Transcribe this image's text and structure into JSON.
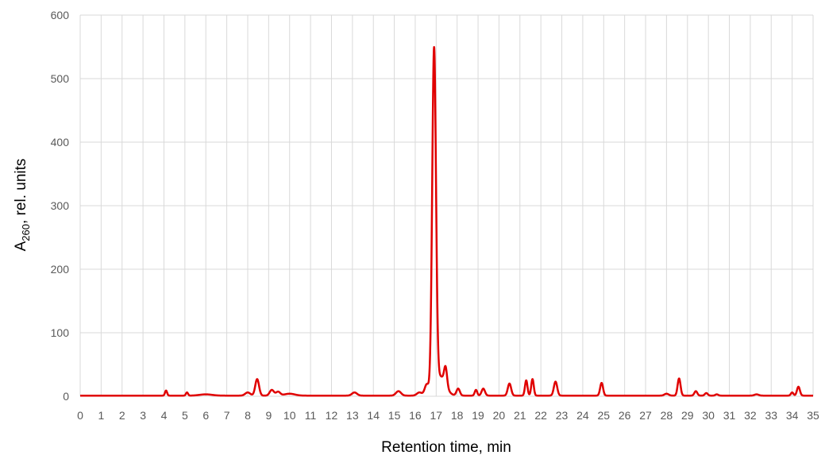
{
  "chart_data": {
    "type": "line",
    "title": "",
    "xlabel": "Retention time, min",
    "ylabel_prefix": "A",
    "ylabel_sub": "260",
    "ylabel_suffix": ", rel. units",
    "xlim": [
      0,
      35
    ],
    "ylim": [
      0,
      600
    ],
    "x_ticks": [
      0,
      1,
      2,
      3,
      4,
      5,
      6,
      7,
      8,
      9,
      10,
      11,
      12,
      13,
      14,
      15,
      16,
      17,
      18,
      19,
      20,
      21,
      22,
      23,
      24,
      25,
      26,
      27,
      28,
      29,
      30,
      31,
      32,
      33,
      34,
      35
    ],
    "y_ticks": [
      0,
      100,
      200,
      300,
      400,
      500,
      600
    ],
    "grid": true,
    "legend": "none",
    "series": [
      {
        "color": "#e00000",
        "baseline": 1,
        "peaks": [
          {
            "x": 4.1,
            "height": 8,
            "width": 0.05
          },
          {
            "x": 5.1,
            "height": 5,
            "width": 0.05
          },
          {
            "x": 6.0,
            "height": 2,
            "width": 0.3
          },
          {
            "x": 8.0,
            "height": 5,
            "width": 0.12
          },
          {
            "x": 8.45,
            "height": 26,
            "width": 0.09
          },
          {
            "x": 9.15,
            "height": 9,
            "width": 0.1
          },
          {
            "x": 9.45,
            "height": 6,
            "width": 0.1
          },
          {
            "x": 10.0,
            "height": 3,
            "width": 0.25
          },
          {
            "x": 13.1,
            "height": 5,
            "width": 0.12
          },
          {
            "x": 15.2,
            "height": 7,
            "width": 0.12
          },
          {
            "x": 16.2,
            "height": 5,
            "width": 0.12
          },
          {
            "x": 16.55,
            "height": 17,
            "width": 0.1
          },
          {
            "x": 16.9,
            "height": 534,
            "width": 0.09
          },
          {
            "x": 17.2,
            "height": 30,
            "width": 0.25
          },
          {
            "x": 17.45,
            "height": 28,
            "width": 0.07
          },
          {
            "x": 18.05,
            "height": 11,
            "width": 0.08
          },
          {
            "x": 18.9,
            "height": 9,
            "width": 0.06
          },
          {
            "x": 19.25,
            "height": 11,
            "width": 0.08
          },
          {
            "x": 20.5,
            "height": 19,
            "width": 0.08
          },
          {
            "x": 21.3,
            "height": 24,
            "width": 0.06
          },
          {
            "x": 21.6,
            "height": 26,
            "width": 0.06
          },
          {
            "x": 22.7,
            "height": 22,
            "width": 0.08
          },
          {
            "x": 24.9,
            "height": 20,
            "width": 0.07
          },
          {
            "x": 28.0,
            "height": 3,
            "width": 0.1
          },
          {
            "x": 28.6,
            "height": 27,
            "width": 0.07
          },
          {
            "x": 29.4,
            "height": 7,
            "width": 0.07
          },
          {
            "x": 29.9,
            "height": 4,
            "width": 0.07
          },
          {
            "x": 30.4,
            "height": 2,
            "width": 0.07
          },
          {
            "x": 32.3,
            "height": 2,
            "width": 0.1
          },
          {
            "x": 34.0,
            "height": 5,
            "width": 0.06
          },
          {
            "x": 34.3,
            "height": 14,
            "width": 0.07
          }
        ]
      }
    ]
  }
}
